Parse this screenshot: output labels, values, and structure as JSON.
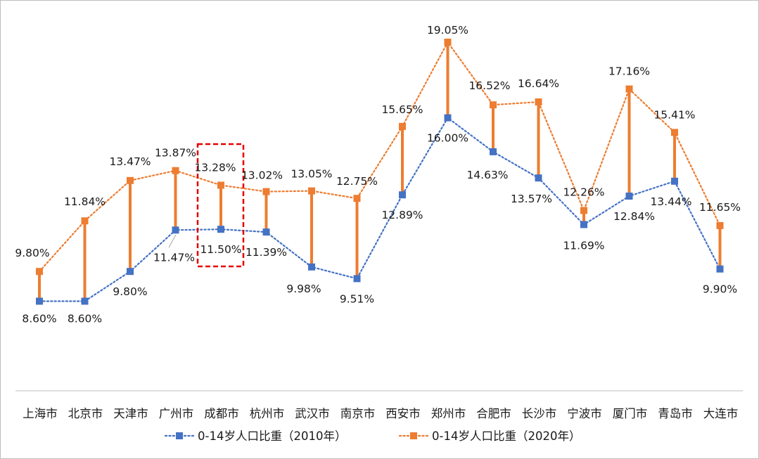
{
  "chart_data": {
    "type": "line",
    "categories": [
      "上海市",
      "北京市",
      "天津市",
      "广州市",
      "成都市",
      "杭州市",
      "武汉市",
      "南京市",
      "西安市",
      "郑州市",
      "合肥市",
      "长沙市",
      "宁波市",
      "厦门市",
      "青岛市",
      "大连市"
    ],
    "series": [
      {
        "name": "0-14岁人口比重（2010年）",
        "values": [
          8.6,
          8.6,
          9.8,
          11.47,
          11.5,
          11.39,
          9.98,
          9.51,
          12.89,
          16.0,
          14.63,
          13.57,
          11.69,
          12.84,
          13.44,
          9.9
        ],
        "labels": [
          "8.60%",
          "8.60%",
          "9.80%",
          "11.47%",
          "11.50%",
          "11.39%",
          "9.98%",
          "9.51%",
          "12.89%",
          "16.00%",
          "14.63%",
          "13.57%",
          "11.69%",
          "12.84%",
          "13.44%",
          "9.90%"
        ],
        "color": "#4472c4",
        "line_style": "dotted",
        "marker": "square"
      },
      {
        "name": "0-14岁人口比重（2020年）",
        "values": [
          9.8,
          11.84,
          13.47,
          13.87,
          13.28,
          13.02,
          13.05,
          12.75,
          15.65,
          19.05,
          16.52,
          16.64,
          12.26,
          17.16,
          15.41,
          11.65
        ],
        "labels": [
          "9.80%",
          "11.84%",
          "13.47%",
          "13.87%",
          "13.28%",
          "13.02%",
          "13.05%",
          "12.75%",
          "15.65%",
          "19.05%",
          "16.52%",
          "16.64%",
          "12.26%",
          "17.16%",
          "15.41%",
          "11.65%"
        ],
        "color": "#ed7d31",
        "line_style": "dotted",
        "marker": "square"
      }
    ],
    "change_bars_color": "#ed7d31",
    "highlight": {
      "category": "成都市",
      "color": "#e60000",
      "style": "dashed box"
    },
    "ylim": [
      7.5,
      20.0
    ],
    "grid": false,
    "legend_position": "bottom",
    "title": "",
    "xlabel": "",
    "ylabel": ""
  }
}
